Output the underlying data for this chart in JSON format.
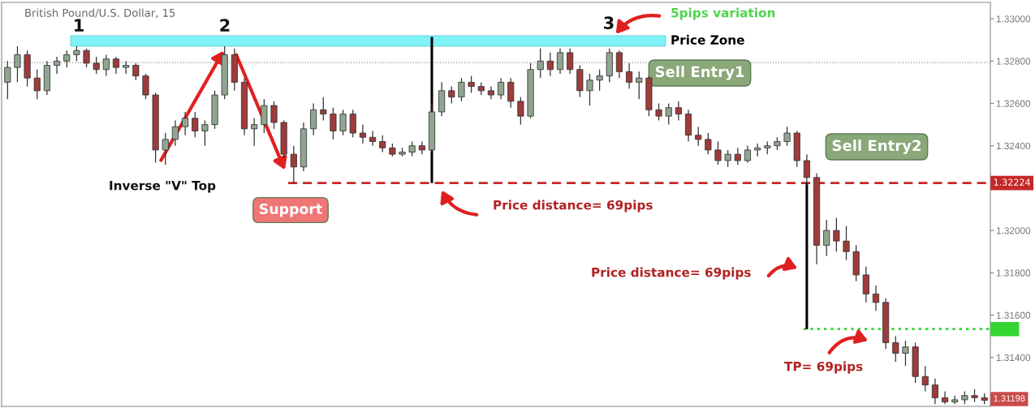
{
  "chart_data": {
    "type": "candlestick",
    "title": "British Pound/U.S. Dollar, 15",
    "categories": [
      null,
      null,
      null,
      null,
      null,
      null,
      null,
      null,
      null,
      null,
      null,
      null,
      null,
      null,
      null,
      null,
      null,
      null,
      null,
      null,
      null,
      null,
      null,
      null,
      null,
      null,
      null,
      null,
      null,
      null,
      null,
      null,
      null,
      null,
      null,
      null,
      null,
      null,
      null,
      null,
      null,
      null,
      null,
      null,
      null,
      null,
      null,
      null,
      null,
      null,
      null,
      null,
      null,
      null,
      null,
      null,
      null,
      null,
      null,
      null,
      null,
      null,
      null,
      null,
      null,
      null,
      null,
      null,
      null,
      null,
      null,
      null,
      null,
      null,
      null,
      null,
      null,
      null,
      null,
      null,
      null,
      null,
      null,
      null,
      null,
      null,
      null,
      null,
      null,
      null,
      null,
      null,
      null,
      null,
      null,
      null,
      null,
      null,
      null,
      null
    ],
    "ohlc": [
      [
        1.327,
        1.328,
        1.3262,
        1.3277
      ],
      [
        1.3277,
        1.3287,
        1.327,
        1.3283
      ],
      [
        1.3283,
        1.3285,
        1.3268,
        1.3272
      ],
      [
        1.3272,
        1.3276,
        1.3262,
        1.3266
      ],
      [
        1.3266,
        1.328,
        1.3264,
        1.3278
      ],
      [
        1.3278,
        1.3282,
        1.3274,
        1.328
      ],
      [
        1.328,
        1.3285,
        1.3277,
        1.3283
      ],
      [
        1.3283,
        1.3287,
        1.328,
        1.3285
      ],
      [
        1.3285,
        1.3286,
        1.3277,
        1.3279
      ],
      [
        1.3279,
        1.3282,
        1.3274,
        1.3276
      ],
      [
        1.3276,
        1.3283,
        1.3273,
        1.3281
      ],
      [
        1.3281,
        1.3282,
        1.3274,
        1.3277
      ],
      [
        1.3277,
        1.328,
        1.3274,
        1.3278
      ],
      [
        1.3278,
        1.3279,
        1.3271,
        1.3273
      ],
      [
        1.3273,
        1.3274,
        1.3262,
        1.3264
      ],
      [
        1.3264,
        1.3265,
        1.3232,
        1.3238
      ],
      [
        1.3238,
        1.3246,
        1.3231,
        1.3243
      ],
      [
        1.3243,
        1.3252,
        1.324,
        1.3249
      ],
      [
        1.3249,
        1.3256,
        1.3245,
        1.3253
      ],
      [
        1.3253,
        1.3256,
        1.3244,
        1.3247
      ],
      [
        1.3247,
        1.3252,
        1.324,
        1.325
      ],
      [
        1.325,
        1.3266,
        1.3248,
        1.3264
      ],
      [
        1.3264,
        1.3287,
        1.3262,
        1.3283
      ],
      [
        1.3283,
        1.3286,
        1.3266,
        1.327
      ],
      [
        1.327,
        1.3272,
        1.3245,
        1.3248
      ],
      [
        1.3248,
        1.3253,
        1.324,
        1.325
      ],
      [
        1.325,
        1.3262,
        1.3246,
        1.3259
      ],
      [
        1.3259,
        1.3261,
        1.3248,
        1.3251
      ],
      [
        1.3251,
        1.3252,
        1.3234,
        1.3236
      ],
      [
        1.3236,
        1.324,
        1.3222,
        1.323
      ],
      [
        1.323,
        1.3251,
        1.3228,
        1.3248
      ],
      [
        1.3248,
        1.326,
        1.3245,
        1.3257
      ],
      [
        1.3257,
        1.3263,
        1.3252,
        1.3255
      ],
      [
        1.3255,
        1.3258,
        1.3243,
        1.3247
      ],
      [
        1.3247,
        1.3257,
        1.3245,
        1.3255
      ],
      [
        1.3255,
        1.3257,
        1.3244,
        1.3246
      ],
      [
        1.3246,
        1.325,
        1.3241,
        1.3244
      ],
      [
        1.3244,
        1.3247,
        1.324,
        1.3242
      ],
      [
        1.3242,
        1.3245,
        1.3237,
        1.3239
      ],
      [
        1.3239,
        1.3241,
        1.3235,
        1.3236
      ],
      [
        1.3236,
        1.3239,
        1.3235,
        1.3237
      ],
      [
        1.3237,
        1.3242,
        1.3235,
        1.324
      ],
      [
        1.324,
        1.3242,
        1.3236,
        1.3238
      ],
      [
        1.3238,
        1.326,
        1.3237,
        1.3256
      ],
      [
        1.3256,
        1.327,
        1.3254,
        1.3266
      ],
      [
        1.3266,
        1.3268,
        1.326,
        1.3263
      ],
      [
        1.3263,
        1.3272,
        1.3261,
        1.327
      ],
      [
        1.327,
        1.3273,
        1.3265,
        1.3268
      ],
      [
        1.3268,
        1.327,
        1.3264,
        1.3266
      ],
      [
        1.3266,
        1.3268,
        1.3262,
        1.3264
      ],
      [
        1.3264,
        1.3272,
        1.3262,
        1.327
      ],
      [
        1.327,
        1.3272,
        1.3258,
        1.3261
      ],
      [
        1.3261,
        1.3263,
        1.325,
        1.3254
      ],
      [
        1.3254,
        1.3279,
        1.3253,
        1.3276
      ],
      [
        1.3276,
        1.3286,
        1.3272,
        1.328
      ],
      [
        1.328,
        1.3284,
        1.3273,
        1.3276
      ],
      [
        1.3276,
        1.3286,
        1.3274,
        1.3284
      ],
      [
        1.3284,
        1.3286,
        1.3274,
        1.3276
      ],
      [
        1.3276,
        1.3278,
        1.3263,
        1.3266
      ],
      [
        1.3266,
        1.3274,
        1.3259,
        1.3271
      ],
      [
        1.3271,
        1.3276,
        1.3266,
        1.3273
      ],
      [
        1.3273,
        1.3286,
        1.327,
        1.3284
      ],
      [
        1.3284,
        1.3285,
        1.3272,
        1.3275
      ],
      [
        1.3275,
        1.3279,
        1.3267,
        1.327
      ],
      [
        1.327,
        1.3275,
        1.3262,
        1.3272
      ],
      [
        1.3272,
        1.3273,
        1.3254,
        1.3257
      ],
      [
        1.3257,
        1.326,
        1.3252,
        1.3254
      ],
      [
        1.3254,
        1.326,
        1.325,
        1.3258
      ],
      [
        1.3258,
        1.3261,
        1.3252,
        1.3255
      ],
      [
        1.3255,
        1.3257,
        1.3242,
        1.3245
      ],
      [
        1.3245,
        1.3249,
        1.324,
        1.3243
      ],
      [
        1.3243,
        1.3246,
        1.3236,
        1.3238
      ],
      [
        1.3238,
        1.3242,
        1.3231,
        1.3233
      ],
      [
        1.3233,
        1.3238,
        1.323,
        1.3236
      ],
      [
        1.3236,
        1.3239,
        1.3231,
        1.3233
      ],
      [
        1.3233,
        1.324,
        1.3232,
        1.3238
      ],
      [
        1.3238,
        1.3241,
        1.3235,
        1.3239
      ],
      [
        1.3239,
        1.3242,
        1.3236,
        1.324
      ],
      [
        1.324,
        1.3244,
        1.3238,
        1.3242
      ],
      [
        1.3242,
        1.3249,
        1.324,
        1.3246
      ],
      [
        1.3246,
        1.3247,
        1.323,
        1.3233
      ],
      [
        1.3233,
        1.3236,
        1.3221,
        1.3225
      ],
      [
        1.3225,
        1.3227,
        1.3184,
        1.3193
      ],
      [
        1.3193,
        1.3205,
        1.3188,
        1.32
      ],
      [
        1.32,
        1.3206,
        1.319,
        1.3195
      ],
      [
        1.3195,
        1.3202,
        1.3186,
        1.319
      ],
      [
        1.319,
        1.3193,
        1.3176,
        1.3179
      ],
      [
        1.3179,
        1.3183,
        1.3166,
        1.317
      ],
      [
        1.317,
        1.3174,
        1.3162,
        1.3166
      ],
      [
        1.3166,
        1.3168,
        1.3144,
        1.3147
      ],
      [
        1.3147,
        1.315,
        1.3138,
        1.3142
      ],
      [
        1.3142,
        1.3148,
        1.3136,
        1.3145
      ],
      [
        1.3145,
        1.3147,
        1.3128,
        1.3131
      ],
      [
        1.3131,
        1.3136,
        1.3124,
        1.3127
      ],
      [
        1.3127,
        1.313,
        1.3118,
        1.3121
      ],
      [
        1.3121,
        1.3124,
        1.3118,
        1.3119
      ],
      [
        1.3119,
        1.3122,
        1.3118,
        1.312
      ],
      [
        1.312,
        1.3124,
        1.3118,
        1.3122
      ],
      [
        1.3122,
        1.3125,
        1.3119,
        1.3121
      ],
      [
        1.3121,
        1.3123,
        1.3118,
        1.31198
      ]
    ],
    "colors": [
      "#8fa58f",
      "#8fa58f",
      "#9e3b3b",
      "#9e3b3b",
      "#8fa58f",
      "#8fa58f",
      "#8fa58f",
      "#8fa58f",
      "#9e3b3b",
      "#9e3b3b",
      "#8fa58f",
      "#9e3b3b",
      "#8fa58f",
      "#9e3b3b",
      "#9e3b3b",
      "#9e3b3b",
      "#8fa58f",
      "#8fa58f",
      "#8fa58f",
      "#9e3b3b",
      "#8fa58f",
      "#8fa58f",
      "#8fa58f",
      "#9e3b3b",
      "#9e3b3b",
      "#8fa58f",
      "#8fa58f",
      "#9e3b3b",
      "#9e3b3b",
      "#9e3b3b",
      "#8fa58f",
      "#8fa58f",
      "#9e3b3b",
      "#9e3b3b",
      "#8fa58f",
      "#9e3b3b",
      "#9e3b3b",
      "#9e3b3b",
      "#9e3b3b",
      "#9e3b3b",
      "#8fa58f",
      "#8fa58f",
      "#9e3b3b",
      "#8fa58f",
      "#8fa58f",
      "#9e3b3b",
      "#8fa58f",
      "#9e3b3b",
      "#9e3b3b",
      "#9e3b3b",
      "#8fa58f",
      "#9e3b3b",
      "#9e3b3b",
      "#8fa58f",
      "#8fa58f",
      "#9e3b3b",
      "#8fa58f",
      "#9e3b3b",
      "#9e3b3b",
      "#8fa58f",
      "#8fa58f",
      "#8fa58f",
      "#9e3b3b",
      "#9e3b3b",
      "#8fa58f",
      "#9e3b3b",
      "#9e3b3b",
      "#8fa58f",
      "#9e3b3b",
      "#9e3b3b",
      "#9e3b3b",
      "#9e3b3b",
      "#9e3b3b",
      "#8fa58f",
      "#9e3b3b",
      "#8fa58f",
      "#8fa58f",
      "#8fa58f",
      "#8fa58f",
      "#8fa58f",
      "#9e3b3b",
      "#9e3b3b",
      "#9e3b3b",
      "#8fa58f",
      "#9e3b3b",
      "#9e3b3b",
      "#9e3b3b",
      "#9e3b3b",
      "#9e3b3b",
      "#9e3b3b",
      "#9e3b3b",
      "#8fa58f",
      "#9e3b3b",
      "#9e3b3b",
      "#9e3b3b",
      "#9e3b3b",
      "#8fa58f",
      "#8fa58f",
      "#9e3b3b",
      "#9e3b3b"
    ],
    "series": [
      {
        "type": "bar",
        "color": "#000000",
        "values": [
          null,
          null,
          null,
          null,
          null,
          null,
          null,
          null,
          null,
          null,
          null,
          null,
          null,
          null,
          null,
          null,
          null,
          null,
          null,
          null,
          null,
          null,
          null,
          null,
          null,
          null,
          null,
          null,
          null,
          null,
          null,
          null,
          null,
          null,
          null,
          null,
          null,
          null,
          null,
          null,
          null,
          null,
          null,
          0.0069,
          null,
          null,
          null,
          null,
          null,
          null,
          null,
          null,
          null,
          null,
          null,
          null,
          null,
          null,
          null,
          null,
          null,
          null,
          null,
          null,
          null,
          null,
          null,
          null,
          null,
          null,
          null,
          null,
          null,
          null,
          null,
          null,
          null,
          null,
          null,
          null,
          null,
          -0.0069,
          null,
          null,
          null,
          null,
          null,
          null,
          null,
          null,
          null,
          null,
          null,
          null,
          null,
          null,
          null,
          null,
          null,
          null
        ],
        "base": [
          null,
          null,
          null,
          null,
          null,
          null,
          null,
          null,
          null,
          null,
          null,
          null,
          null,
          null,
          null,
          null,
          null,
          null,
          null,
          null,
          null,
          null,
          null,
          null,
          null,
          null,
          null,
          null,
          null,
          null,
          null,
          null,
          null,
          null,
          null,
          null,
          null,
          null,
          null,
          null,
          null,
          null,
          null,
          1.32224,
          null,
          null,
          null,
          null,
          null,
          null,
          null,
          null,
          null,
          null,
          null,
          null,
          null,
          null,
          null,
          null,
          null,
          null,
          null,
          null,
          null,
          null,
          null,
          null,
          null,
          null,
          null,
          null,
          null,
          null,
          null,
          null,
          null,
          null,
          null,
          null,
          null,
          1.32224,
          null,
          null,
          null,
          null,
          null,
          null,
          null,
          null,
          null,
          null,
          null,
          null,
          null,
          null,
          null,
          null,
          null,
          null
        ]
      }
    ],
    "ylim": [
      1.31169,
      1.33077
    ],
    "yticks": [
      {
        "value": 1.33,
        "label": "1.33000"
      },
      {
        "value": 1.328,
        "label": "1.32800"
      },
      {
        "value": 1.326,
        "label": "1.32600"
      },
      {
        "value": 1.324,
        "label": "1.32400"
      },
      {
        "value": 1.32,
        "label": "1.32000"
      },
      {
        "value": 1.318,
        "label": "1.31800"
      },
      {
        "value": 1.316,
        "label": "1.31600"
      },
      {
        "value": 1.314,
        "label": "1.31400"
      }
    ],
    "tick_labels": "y",
    "grid": false,
    "bands": [
      {
        "axis": "y",
        "from": 1.3287,
        "to": 1.3292,
        "label": "Price Zone",
        "color": "#7ff3f8"
      }
    ],
    "ref_lines": [
      {
        "axis": "y",
        "value": 1.32224,
        "label": "1.32224",
        "color": "#c62828",
        "line_style": "dashed"
      },
      {
        "axis": "y",
        "value": 1.31534,
        "color": "#33d633",
        "line_style": "dotted"
      },
      {
        "axis": "y",
        "value": 1.32793,
        "color": "#999999",
        "line_style": "dotted"
      }
    ],
    "annotations": [
      "1",
      "2",
      "3",
      "5pips variation",
      "Sell Entry1",
      "Sell Entry2",
      "Inverse \"V\" Top",
      "Support",
      "Price distance= 69pips",
      "Price distance= 69pips",
      "TP= 69pips",
      "1.31198"
    ]
  }
}
